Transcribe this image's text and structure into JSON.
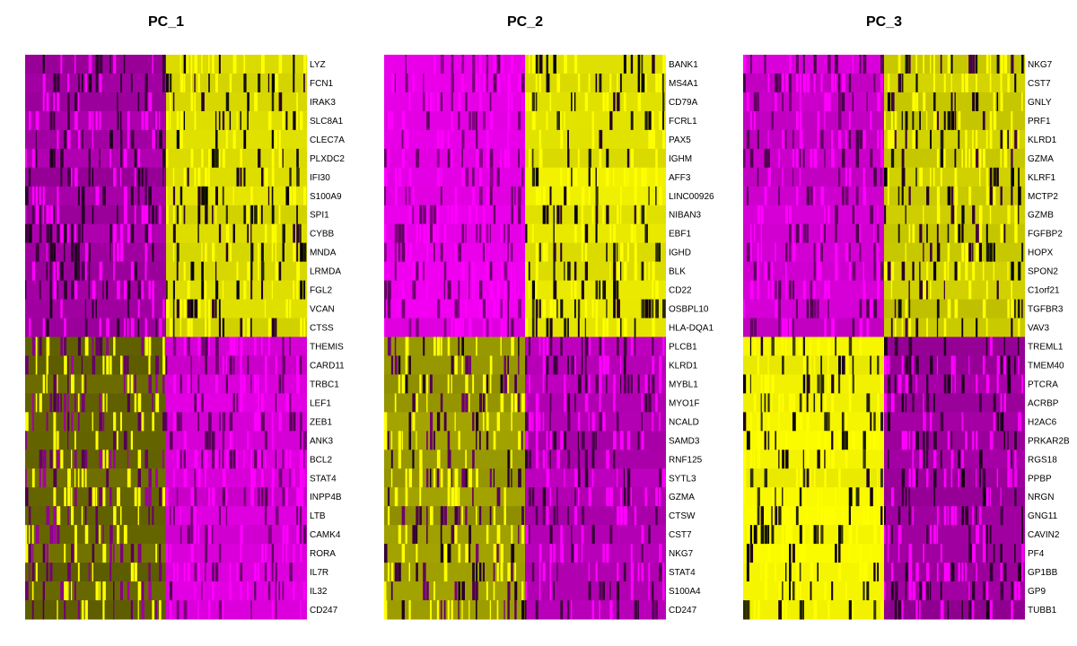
{
  "chart_data": {
    "type": "heatmap",
    "colors": {
      "low": "#ff00ff",
      "mid": "#000000",
      "high": "#ffff00"
    },
    "panels": [
      {
        "title": "PC_1",
        "top_group": {
          "left_level": 0.18,
          "right_level": 0.93
        },
        "bottom_group": {
          "left_level": 0.7,
          "right_level": 0.08
        },
        "genes": [
          "LYZ",
          "FCN1",
          "IRAK3",
          "SLC8A1",
          "CLEC7A",
          "PLXDC2",
          "IFI30",
          "S100A9",
          "SPI1",
          "CYBB",
          "MNDA",
          "LRMDA",
          "FGL2",
          "VCAN",
          "CTSS",
          "THEMIS",
          "CARD11",
          "TRBC1",
          "LEF1",
          "ZEB1",
          "ANK3",
          "BCL2",
          "STAT4",
          "INPP4B",
          "LTB",
          "CAMK4",
          "RORA",
          "IL7R",
          "IL32",
          "CD247"
        ]
      },
      {
        "title": "PC_2",
        "top_group": {
          "left_level": 0.05,
          "right_level": 0.95
        },
        "bottom_group": {
          "left_level": 0.8,
          "right_level": 0.15
        },
        "genes": [
          "BANK1",
          "MS4A1",
          "CD79A",
          "FCRL1",
          "PAX5",
          "IGHM",
          "AFF3",
          "LINC00926",
          "NIBAN3",
          "EBF1",
          "IGHD",
          "BLK",
          "CD22",
          "OSBPL10",
          "HLA-DQA1",
          "PLCB1",
          "KLRD1",
          "MYBL1",
          "MYO1F",
          "NCALD",
          "SAMD3",
          "RNF125",
          "SYTL3",
          "GZMA",
          "CTSW",
          "CST7",
          "NKG7",
          "STAT4",
          "S100A4",
          "CD247"
        ]
      },
      {
        "title": "PC_3",
        "top_group": {
          "left_level": 0.1,
          "right_level": 0.9
        },
        "bottom_group": {
          "left_level": 0.97,
          "right_level": 0.2
        },
        "genes": [
          "NKG7",
          "CST7",
          "GNLY",
          "PRF1",
          "KLRD1",
          "GZMA",
          "KLRF1",
          "MCTP2",
          "GZMB",
          "FGFBP2",
          "HOPX",
          "SPON2",
          "C1orf21",
          "TGFBR3",
          "VAV3",
          "TREML1",
          "TMEM40",
          "PTCRA",
          "ACRBP",
          "H2AC6",
          "PRKAR2B",
          "RGS18",
          "PPBP",
          "NRGN",
          "GNG11",
          "CAVIN2",
          "PF4",
          "GP1BB",
          "GP9",
          "TUBB1"
        ]
      }
    ]
  }
}
